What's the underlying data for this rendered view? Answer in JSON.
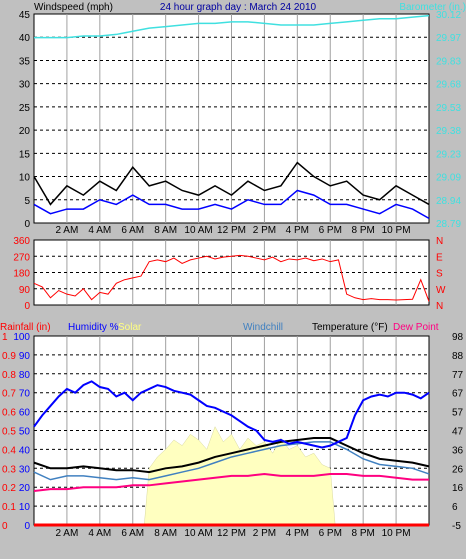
{
  "chart_data": [
    {
      "type": "line",
      "title": "24 hour graph day : March 24 2010",
      "ylabel": "Windspeed (mph)",
      "y2label": "Barometer (in.)",
      "ylim": [
        0,
        45
      ],
      "y_ticks": [
        "0",
        "5",
        "10",
        "15",
        "20",
        "25",
        "30",
        "35",
        "40",
        "45"
      ],
      "y2lim": [
        28.79,
        30.12
      ],
      "y2_ticks": [
        "28.79",
        "28.94",
        "29.09",
        "29.23",
        "29.38",
        "29.53",
        "29.68",
        "29.83",
        "29.97",
        "30.12"
      ],
      "x_ticks": [
        "2 AM",
        "4 AM",
        "6 AM",
        "8 AM",
        "10 AM",
        "12 PM",
        "2 PM",
        "4 PM",
        "6 PM",
        "8 PM",
        "10 PM"
      ],
      "grid": true,
      "colors": {
        "wind_gust": "#000000",
        "wind_avg": "#0000ff",
        "wind_dir_avg": "#606060",
        "barometer": "#40e0e0"
      },
      "series": [
        {
          "key": "barometer",
          "axis": "right",
          "x": [
            0,
            1,
            2,
            3,
            4,
            5,
            6,
            7,
            8,
            9,
            10,
            11,
            12,
            13,
            14,
            15,
            16,
            17,
            18,
            19,
            20,
            21,
            22,
            23,
            24
          ],
          "values": [
            29.97,
            29.97,
            29.97,
            29.98,
            29.98,
            29.99,
            30.01,
            30.03,
            30.04,
            30.05,
            30.06,
            30.06,
            30.07,
            30.07,
            30.06,
            30.05,
            30.05,
            30.05,
            30.06,
            30.07,
            30.08,
            30.09,
            30.09,
            30.1,
            30.11
          ]
        },
        {
          "key": "wind_gust",
          "axis": "left",
          "x": [
            0,
            1,
            2,
            3,
            4,
            5,
            6,
            7,
            8,
            9,
            10,
            11,
            12,
            13,
            14,
            15,
            16,
            17,
            18,
            19,
            20,
            21,
            22,
            23,
            24
          ],
          "values": [
            10,
            4,
            8,
            6,
            9,
            7,
            12,
            8,
            9,
            7,
            6,
            8,
            6,
            9,
            7,
            8,
            13,
            10,
            8,
            9,
            6,
            5,
            8,
            6,
            4
          ]
        },
        {
          "key": "wind_avg",
          "axis": "left",
          "x": [
            0,
            1,
            2,
            3,
            4,
            5,
            6,
            7,
            8,
            9,
            10,
            11,
            12,
            13,
            14,
            15,
            16,
            17,
            18,
            19,
            20,
            21,
            22,
            23,
            24
          ],
          "values": [
            4,
            2,
            3,
            3,
            5,
            4,
            6,
            4,
            4,
            3,
            3,
            4,
            3,
            5,
            4,
            4,
            7,
            6,
            4,
            4,
            3,
            2,
            4,
            3,
            1
          ]
        }
      ]
    },
    {
      "type": "line",
      "y_ticks": [
        "0",
        "90",
        "180",
        "270",
        "360"
      ],
      "ylim": [
        0,
        360
      ],
      "y2_ticks": [
        "N",
        "W",
        "S",
        "E",
        "N"
      ],
      "x_ticks": [
        "2 AM",
        "4 AM",
        "6 AM",
        "8 AM",
        "10 AM",
        "12 PM",
        "2 PM",
        "4 PM",
        "6 PM",
        "8 PM",
        "10 PM"
      ],
      "grid": true,
      "colors": {
        "wind_dir": "#ff0000"
      },
      "series": [
        {
          "key": "wind_dir",
          "x": [
            0,
            0.5,
            1,
            1.5,
            2,
            2.5,
            3,
            3.5,
            4,
            4.5,
            5,
            5.5,
            6,
            6.5,
            7,
            7.5,
            8,
            8.5,
            9,
            9.5,
            10,
            10.5,
            11,
            11.5,
            12,
            12.5,
            13,
            13.5,
            14,
            14.5,
            15,
            15.5,
            16,
            16.5,
            17,
            17.5,
            18,
            18.5,
            19,
            19.5,
            20,
            20.5,
            21,
            21.5,
            22,
            22.5,
            23,
            23.5,
            24
          ],
          "values": [
            120,
            100,
            40,
            80,
            60,
            50,
            90,
            30,
            70,
            60,
            120,
            140,
            150,
            160,
            240,
            250,
            240,
            260,
            230,
            250,
            260,
            270,
            255,
            265,
            270,
            275,
            270,
            260,
            250,
            265,
            240,
            255,
            250,
            260,
            245,
            255,
            240,
            250,
            60,
            40,
            30,
            35,
            30,
            30,
            28,
            30,
            32,
            140,
            20
          ]
        }
      ]
    },
    {
      "type": "line",
      "labels": [
        "Rainfall (in)",
        "Humidity %",
        "Solar",
        "Windchill",
        "Temperature (°F)",
        "Dew Point"
      ],
      "y_ticks": [
        "0",
        "10",
        "20",
        "30",
        "40",
        "50",
        "60",
        "70",
        "80",
        "90",
        "100"
      ],
      "y_ticks_small": [
        "0",
        "0.1",
        "0.2",
        "0.3",
        "0.4",
        "0.5",
        "0.6",
        "0.7",
        "0.8",
        "0.9",
        "1"
      ],
      "y2_ticks": [
        "-5",
        "6",
        "16",
        "26",
        "36",
        "47",
        "57",
        "67",
        "77",
        "88",
        "98"
      ],
      "ylim": [
        0,
        100
      ],
      "x_ticks": [
        "2 AM",
        "4 AM",
        "6 AM",
        "8 AM",
        "10 AM",
        "12 PM",
        "2 PM",
        "4 PM",
        "6 PM",
        "8 PM",
        "10 PM"
      ],
      "grid": true,
      "colors": {
        "rainfall": "#ff0000",
        "humidity": "#0000ff",
        "solar": "#ffffc0",
        "windchill": "#4080c0",
        "temperature": "#000000",
        "dewpoint": "#ff0080"
      },
      "series": [
        {
          "key": "humidity",
          "x": [
            0,
            0.5,
            1,
            1.5,
            2,
            2.5,
            3,
            3.5,
            4,
            4.5,
            5,
            5.5,
            6,
            6.5,
            7,
            7.5,
            8,
            8.5,
            9,
            9.5,
            10,
            10.5,
            11,
            11.5,
            12,
            12.5,
            13,
            13.5,
            14,
            14.5,
            15,
            15.5,
            16,
            16.5,
            17,
            17.5,
            18,
            18.5,
            19,
            19.5,
            20,
            20.5,
            21,
            21.5,
            22,
            22.5,
            23,
            23.5,
            24
          ],
          "values": [
            52,
            58,
            63,
            68,
            72,
            70,
            74,
            76,
            73,
            72,
            68,
            70,
            66,
            70,
            72,
            74,
            73,
            71,
            70,
            69,
            66,
            63,
            62,
            60,
            58,
            55,
            52,
            50,
            45,
            44,
            45,
            43,
            44,
            43,
            42,
            41,
            42,
            44,
            46,
            58,
            66,
            68,
            69,
            68,
            70,
            70,
            69,
            67,
            70
          ]
        },
        {
          "key": "temperature",
          "x": [
            0,
            1,
            2,
            3,
            4,
            5,
            6,
            7,
            8,
            9,
            10,
            11,
            12,
            13,
            14,
            15,
            16,
            17,
            18,
            19,
            20,
            21,
            22,
            23,
            24
          ],
          "values": [
            33,
            30,
            30,
            31,
            30,
            29,
            29,
            28,
            30,
            31,
            33,
            36,
            38,
            40,
            42,
            44,
            45,
            46,
            46,
            42,
            38,
            35,
            34,
            33,
            31
          ]
        },
        {
          "key": "windchill",
          "x": [
            0,
            1,
            2,
            3,
            4,
            5,
            6,
            7,
            8,
            9,
            10,
            11,
            12,
            13,
            14,
            15,
            16,
            17,
            18,
            19,
            20,
            21,
            22,
            23,
            24
          ],
          "values": [
            28,
            24,
            26,
            26,
            25,
            24,
            25,
            24,
            26,
            28,
            30,
            33,
            36,
            38,
            40,
            42,
            43,
            44,
            44,
            40,
            35,
            32,
            31,
            30,
            27
          ]
        },
        {
          "key": "dewpoint",
          "x": [
            0,
            1,
            2,
            3,
            4,
            5,
            6,
            7,
            8,
            9,
            10,
            11,
            12,
            13,
            14,
            15,
            16,
            17,
            18,
            19,
            20,
            21,
            22,
            23,
            24
          ],
          "values": [
            18,
            19,
            19,
            20,
            20,
            20,
            21,
            21,
            22,
            23,
            24,
            25,
            26,
            26,
            27,
            26,
            26,
            26,
            27,
            27,
            26,
            26,
            25,
            24,
            24
          ]
        },
        {
          "key": "solar",
          "x": [
            6.7,
            7,
            7.5,
            8,
            8.5,
            9,
            9.5,
            10,
            10.5,
            11,
            11.5,
            12,
            12.5,
            13,
            13.5,
            14,
            14.5,
            15,
            15.5,
            16,
            16.5,
            17,
            17.5,
            18,
            18.3
          ],
          "values": [
            0,
            30,
            36,
            40,
            45,
            42,
            48,
            45,
            40,
            52,
            44,
            48,
            40,
            46,
            42,
            44,
            38,
            46,
            40,
            42,
            36,
            38,
            32,
            30,
            0
          ]
        },
        {
          "key": "rainfall",
          "x": [
            0,
            24
          ],
          "values": [
            0,
            0
          ]
        }
      ]
    }
  ]
}
